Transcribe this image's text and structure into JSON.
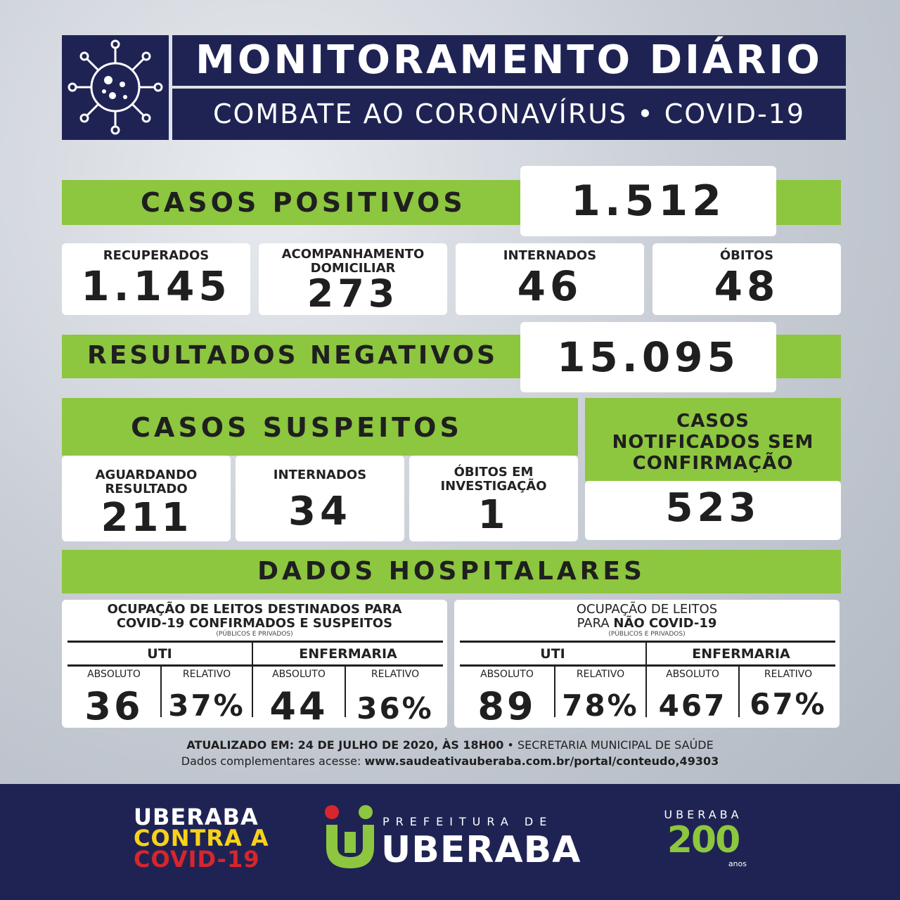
{
  "header": {
    "title": "MONITORAMENTO DIÁRIO",
    "subtitle": "COMBATE AO CORONAVÍRUS • COVID-19",
    "icon": "virus-icon"
  },
  "positivos": {
    "label": "CASOS POSITIVOS",
    "value": "1.512"
  },
  "status_cards": [
    {
      "label": "RECUPERADOS",
      "value": "1.145"
    },
    {
      "label": "ACOMPANHAMENTO DOMICILIAR",
      "value": "273"
    },
    {
      "label": "INTERNADOS",
      "value": "46"
    },
    {
      "label": "ÓBITOS",
      "value": "48"
    }
  ],
  "negativos": {
    "label": "RESULTADOS NEGATIVOS",
    "value": "15.095"
  },
  "suspeitos": {
    "label": "CASOS SUSPEITOS",
    "cards": [
      {
        "label": "AGUARDANDO RESULTADO",
        "value": "211"
      },
      {
        "label": "INTERNADOS",
        "value": "34"
      },
      {
        "label": "ÓBITOS EM INVESTIGAÇÃO",
        "value": "1"
      }
    ]
  },
  "notificados": {
    "label": "CASOS NOTIFICADOS SEM CONFIRMAÇÃO",
    "value": "523"
  },
  "hospital": {
    "label": "DADOS HOSPITALARES",
    "covid": {
      "title_line1": "OCUPAÇÃO DE LEITOS DESTINADOS PARA",
      "title_line2_prefix": "COVID-19 ",
      "title_line2_bold": "CONFIRMADOS  E SUSPEITOS",
      "note": "(PÚBLICOS E PRIVADOS)",
      "uti_label": "UTI",
      "enf_label": "ENFERMARIA",
      "col_abs": "ABSOLUTO",
      "col_rel": "RELATIVO",
      "uti_abs": "36",
      "uti_rel": "37%",
      "enf_abs": "44",
      "enf_rel": "36%"
    },
    "non_covid": {
      "title_line1": "OCUPAÇÃO DE LEITOS",
      "title_line2_prefix": "PARA ",
      "title_line2_bold": "NÃO COVID-19",
      "note": "(PÚBLICOS E PRIVADOS)",
      "uti_label": "UTI",
      "enf_label": "ENFERMARIA",
      "col_abs": "ABSOLUTO",
      "col_rel": "RELATIVO",
      "uti_abs": "89",
      "uti_rel": "78%",
      "enf_abs": "467",
      "enf_rel": "67%"
    }
  },
  "updated": {
    "line1_bold": "ATUALIZADO EM: 24 DE JULHO DE 2020, ÀS 18H00",
    "line1_rest": " • SECRETARIA MUNICIPAL DE SAÚDE",
    "line2_prefix": "Dados complementares acesse:  ",
    "line2_url": "www.saudeativauberaba.com.br/portal/conteudo,49303"
  },
  "footer": {
    "campaign_line1": "UBERABA",
    "campaign_line2": "CONTRA A",
    "campaign_line3": "COVID-19",
    "pref_small": "PREFEITURA DE",
    "pref_big": "UBERABA",
    "anniv_top": "UBERABA",
    "anniv_num": "200",
    "anniv_sub": "anos",
    "colors": {
      "yellow": "#f7d21b",
      "red": "#d7262c",
      "green": "#8dc63f",
      "navy": "#1f2354"
    }
  }
}
